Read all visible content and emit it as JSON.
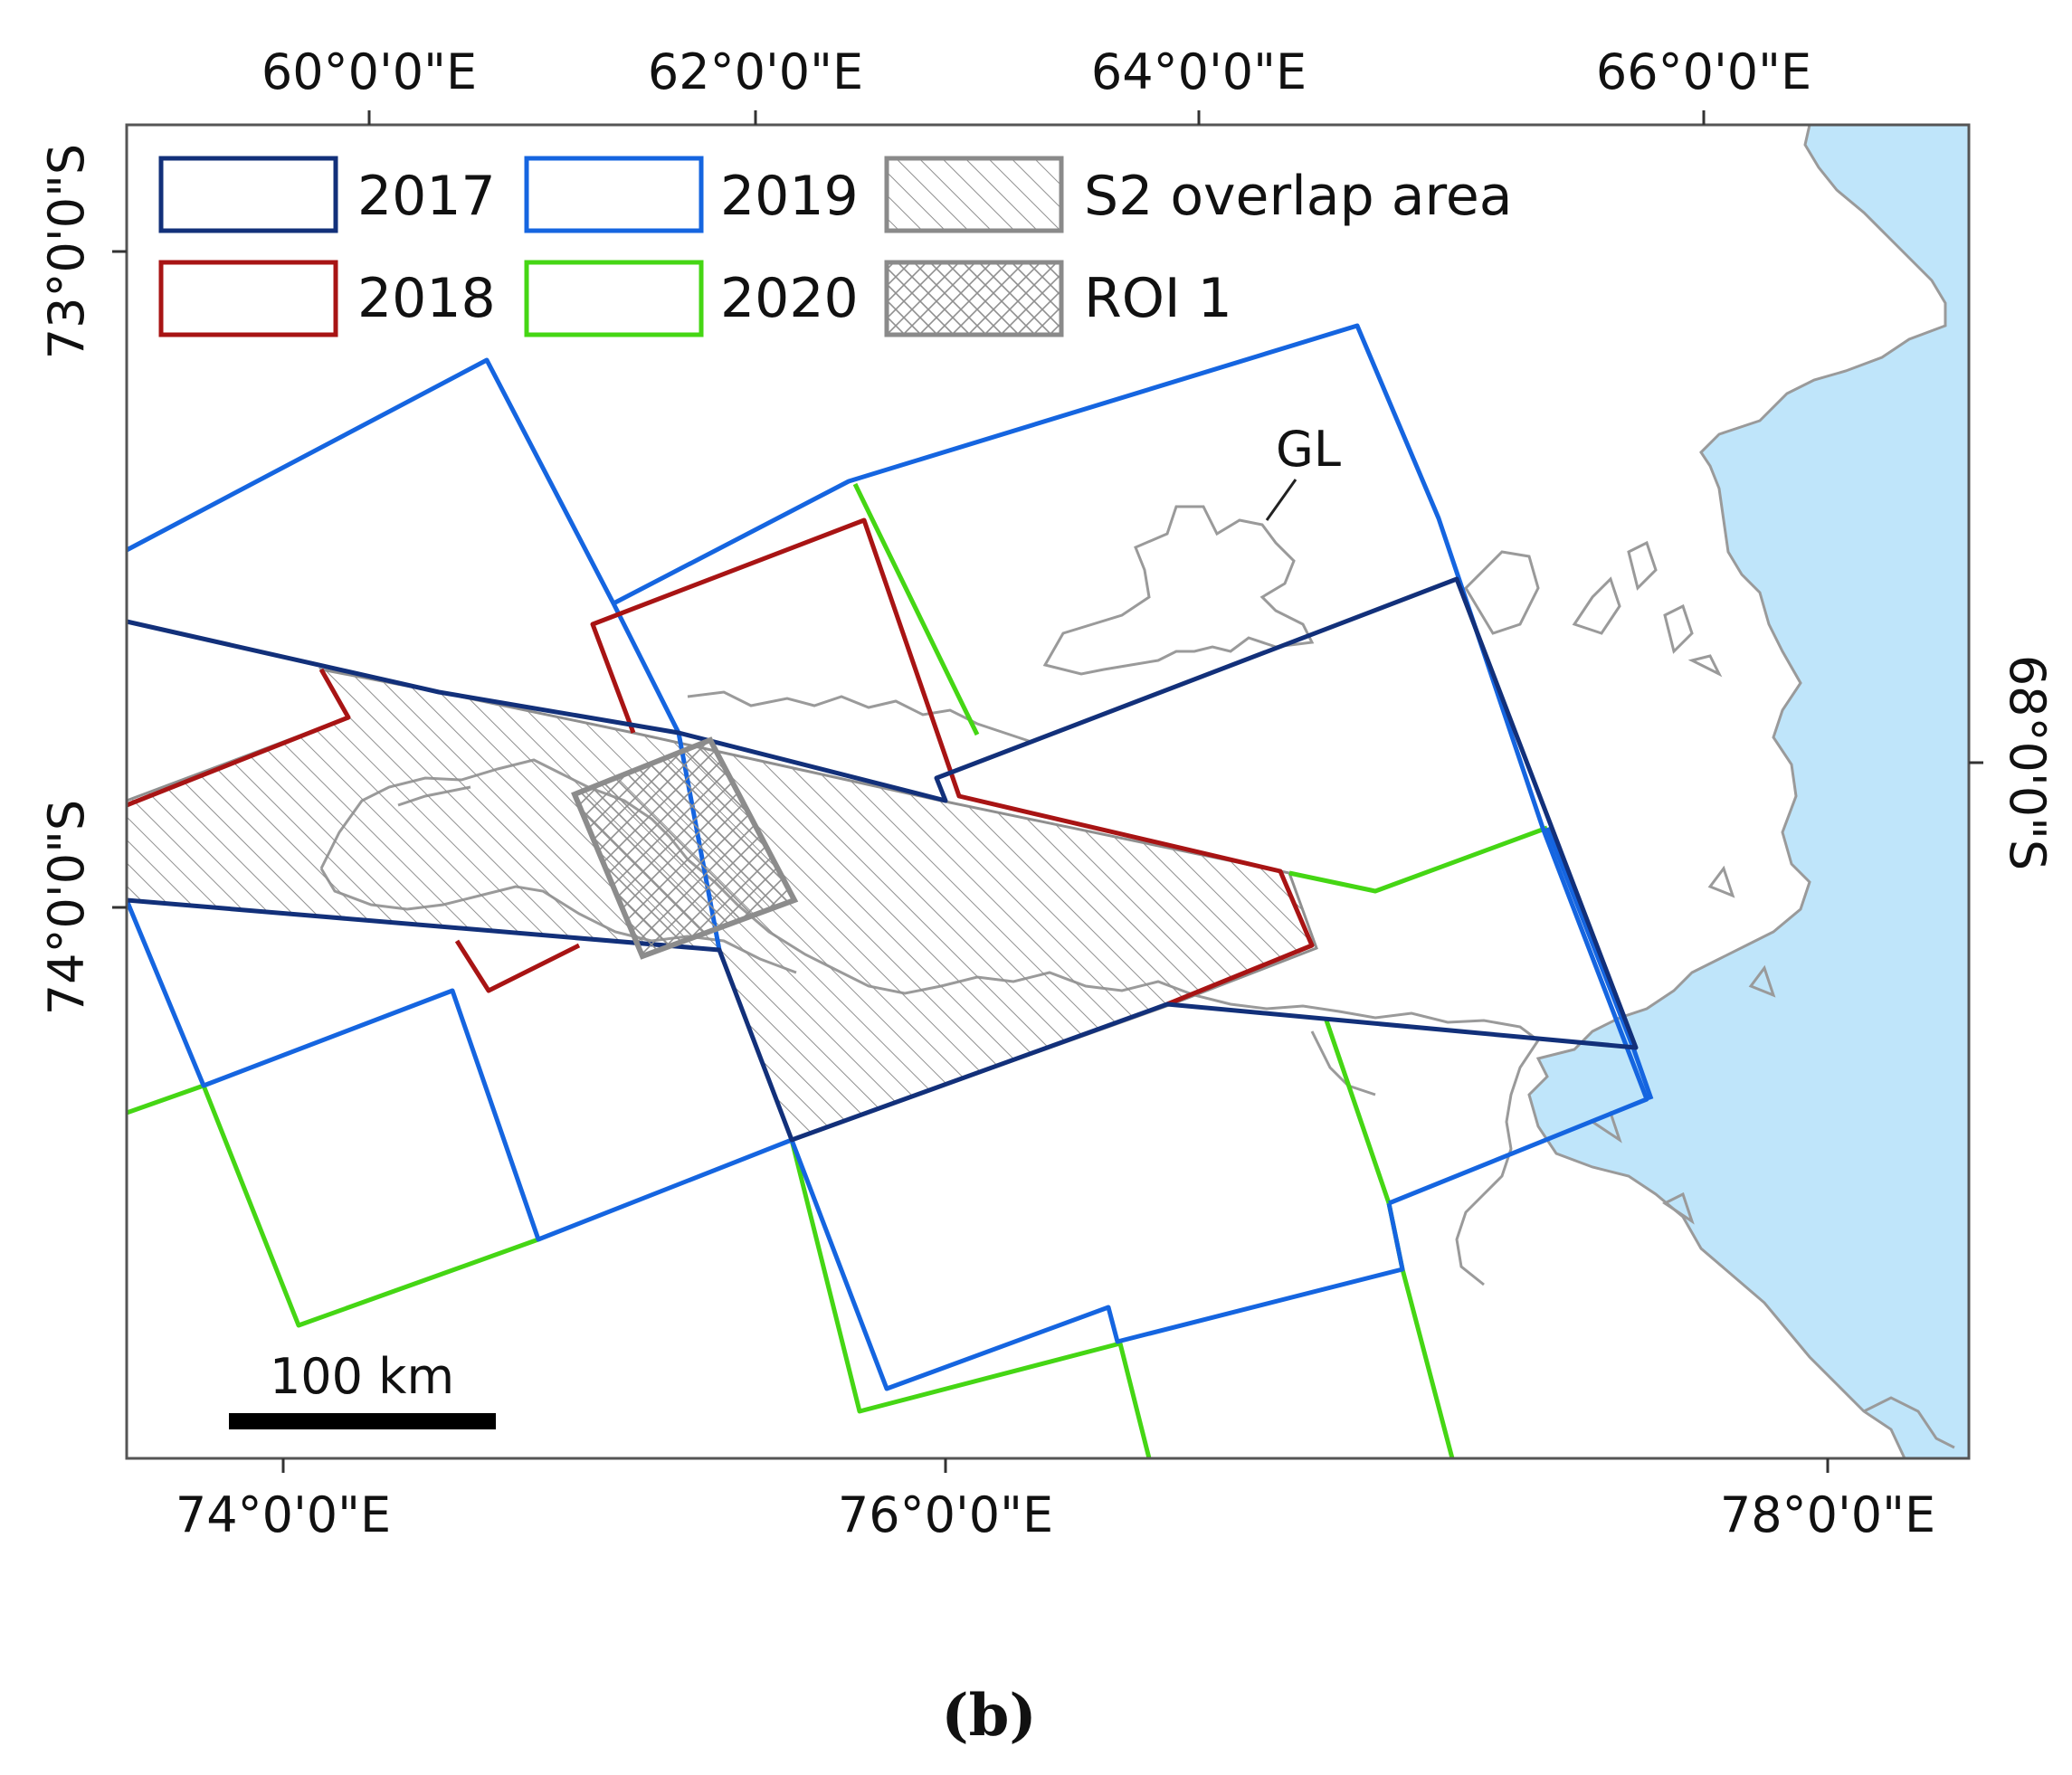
{
  "top_axis": {
    "ticks": [
      "60°0'0\"E",
      "62°0'0\"E",
      "64°0'0\"E",
      "66°0'0\"E"
    ]
  },
  "bottom_axis": {
    "ticks": [
      "74°0'0\"E",
      "76°0'0\"E",
      "78°0'0\"E"
    ]
  },
  "left_axis": {
    "ticks": [
      "73°0'0\"S",
      "74°0'0\"S"
    ]
  },
  "right_axis": {
    "ticks": [
      "68°0'0\"S"
    ]
  },
  "legend": {
    "items": [
      {
        "label": "2017",
        "color": "#12307a",
        "style": "outline"
      },
      {
        "label": "2018",
        "color": "#a81414",
        "style": "outline"
      },
      {
        "label": "2019",
        "color": "#1565e0",
        "style": "outline"
      },
      {
        "label": "2020",
        "color": "#45d614",
        "style": "outline"
      },
      {
        "label": "S2 overlap area",
        "color": "#8a8a8a",
        "style": "hatch"
      },
      {
        "label": "ROI 1",
        "color": "#8a8a8a",
        "style": "crosshatch"
      }
    ]
  },
  "annotations": {
    "grounding_line": "GL"
  },
  "scale_bar": {
    "label": "100 km"
  },
  "caption": "(b)",
  "colors": {
    "ocean": "#bfe5fa",
    "coastline": "#9a9a9a",
    "frame": "#555555"
  }
}
